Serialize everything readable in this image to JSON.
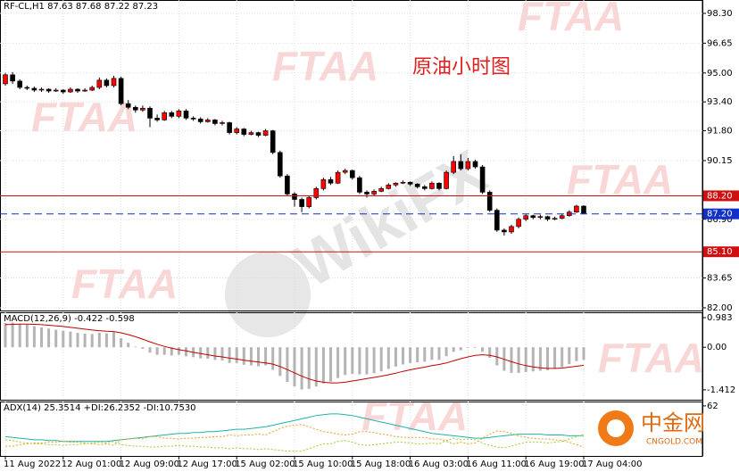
{
  "chart_data": {
    "type": "candlestick",
    "header": "RF-CL,H1  87.63 87.68 87.22 87.23",
    "title": "原油小时图",
    "categories": [
      "11 Aug 2022",
      null,
      null,
      null,
      null,
      null,
      null,
      null,
      "12 Aug 01:00",
      null,
      null,
      null,
      null,
      null,
      null,
      null,
      "12 Aug 09:00",
      null,
      null,
      null,
      null,
      null,
      null,
      null,
      "12 Aug 17:00",
      null,
      null,
      null,
      null,
      null,
      null,
      null,
      "15 Aug 02:00",
      null,
      null,
      null,
      null,
      null,
      null,
      null,
      "15 Aug 10:00",
      null,
      null,
      null,
      null,
      null,
      null,
      null,
      "15 Aug 18:00",
      null,
      null,
      null,
      null,
      null,
      null,
      null,
      "16 Aug 03:00",
      null,
      null,
      null,
      null,
      null,
      null,
      null,
      "16 Aug 11:00",
      null,
      null,
      null,
      null,
      null,
      null,
      null,
      "16 Aug 19:00",
      null,
      null,
      null,
      null,
      null,
      null,
      null,
      "17 Aug 04:00"
    ],
    "open": [
      94.4,
      94.9,
      94.55,
      94.2,
      94.15,
      94.05,
      94.1,
      94.0,
      94.05,
      93.95,
      94.1,
      94.0,
      94.05,
      94.2,
      94.6,
      94.3,
      94.7,
      93.3,
      93.1,
      92.95,
      93.05,
      92.5,
      92.4,
      92.8,
      92.6,
      92.9,
      92.5,
      92.45,
      92.3,
      92.4,
      92.2,
      92.25,
      91.7,
      91.9,
      91.6,
      91.7,
      91.55,
      91.8,
      90.6,
      89.3,
      88.3,
      88.0,
      87.6,
      88.1,
      88.6,
      89.1,
      88.9,
      89.5,
      89.6,
      89.2,
      88.4,
      88.3,
      88.45,
      88.6,
      88.8,
      88.9,
      88.95,
      88.85,
      88.7,
      88.6,
      88.9,
      88.6,
      89.5,
      90.1,
      89.7,
      90.1,
      89.8,
      88.4,
      87.4,
      86.3,
      86.2,
      86.5,
      86.9,
      87.1,
      87.0,
      87.05,
      86.9,
      86.95,
      87.1,
      87.3,
      87.63
    ],
    "high": [
      95.0,
      95.05,
      94.65,
      94.3,
      94.25,
      94.2,
      94.15,
      94.15,
      94.1,
      94.2,
      94.15,
      94.15,
      94.3,
      94.75,
      94.7,
      94.85,
      94.8,
      93.5,
      93.2,
      93.2,
      93.15,
      92.7,
      92.9,
      92.9,
      93.0,
      93.0,
      92.6,
      92.55,
      92.5,
      92.45,
      92.35,
      92.3,
      92.0,
      91.95,
      91.8,
      91.75,
      91.9,
      91.85,
      90.7,
      89.4,
      88.4,
      88.1,
      88.2,
      88.7,
      89.2,
      89.25,
      89.6,
      89.7,
      89.65,
      89.3,
      88.5,
      88.55,
      88.7,
      88.9,
      88.95,
      89.05,
      89.0,
      88.9,
      88.8,
      89.0,
      88.95,
      89.6,
      90.4,
      90.5,
      90.3,
      90.2,
      89.9,
      88.5,
      87.5,
      86.4,
      86.6,
      87.0,
      87.2,
      87.15,
      87.15,
      87.1,
      87.05,
      87.2,
      87.4,
      87.7,
      87.68
    ],
    "low": [
      94.3,
      94.4,
      94.1,
      94.05,
      93.95,
      93.95,
      93.9,
      93.95,
      93.85,
      93.9,
      93.9,
      93.95,
      94.0,
      94.1,
      94.2,
      94.2,
      93.2,
      93.0,
      92.8,
      92.85,
      92.0,
      92.3,
      92.35,
      92.5,
      92.5,
      92.4,
      92.35,
      92.2,
      92.25,
      92.1,
      92.1,
      91.6,
      91.6,
      91.5,
      91.55,
      91.45,
      91.5,
      90.5,
      89.2,
      88.2,
      87.6,
      87.3,
      87.5,
      88.0,
      88.5,
      88.8,
      88.85,
      89.4,
      89.1,
      88.3,
      88.1,
      88.2,
      88.4,
      88.55,
      88.7,
      88.85,
      88.75,
      88.6,
      88.5,
      88.55,
      88.5,
      88.55,
      89.4,
      89.6,
      89.6,
      89.7,
      88.3,
      87.3,
      86.2,
      86.0,
      86.1,
      86.4,
      86.8,
      86.9,
      86.9,
      86.8,
      86.85,
      86.9,
      87.05,
      87.25,
      87.22
    ],
    "close": [
      94.9,
      94.55,
      94.2,
      94.15,
      94.05,
      94.1,
      94.0,
      94.05,
      93.95,
      94.1,
      94.0,
      94.05,
      94.2,
      94.6,
      94.3,
      94.7,
      93.3,
      93.1,
      92.95,
      93.05,
      92.5,
      92.4,
      92.8,
      92.6,
      92.9,
      92.5,
      92.45,
      92.3,
      92.4,
      92.2,
      92.25,
      91.7,
      91.9,
      91.6,
      91.7,
      91.55,
      91.8,
      90.6,
      89.3,
      88.3,
      88.0,
      87.6,
      88.1,
      88.6,
      89.1,
      88.9,
      89.5,
      89.6,
      89.2,
      88.4,
      88.3,
      88.45,
      88.6,
      88.8,
      88.9,
      88.95,
      88.85,
      88.7,
      88.6,
      88.9,
      88.6,
      89.5,
      90.1,
      89.7,
      90.1,
      89.8,
      88.4,
      87.4,
      86.3,
      86.2,
      86.5,
      86.9,
      87.1,
      87.0,
      87.05,
      86.9,
      86.95,
      87.1,
      87.3,
      87.63,
      87.23
    ],
    "up_color": "#ff0000",
    "down_color": "#000000",
    "ylim": [
      81.85,
      99.04
    ],
    "yticks": [
      {
        "value": 98.3,
        "label": "98.30"
      },
      96.65,
      {
        "value": 95,
        "label": "95.00"
      },
      {
        "value": 93.4,
        "label": "93.40"
      },
      {
        "value": 91.8,
        "label": "91.80"
      },
      90.15,
      {
        "value": 86.9,
        "label": "86.90"
      },
      83.65,
      {
        "value": 82,
        "label": "82.00"
      }
    ],
    "grid": true,
    "hlines": [
      {
        "value": 88.2,
        "label": "88.20",
        "color": "#d01010",
        "dashed": false
      },
      {
        "value": 87.2,
        "label": "87.20",
        "color": "#1030c8",
        "dashed": true
      },
      {
        "value": 85.1,
        "label": "85.10",
        "color": "#d01010",
        "dashed": false
      }
    ],
    "macd": {
      "label": "MACD(12,26,9) -0.422 -0.598",
      "ylim": [
        -1.74,
        1.16
      ],
      "yticks": [
        0.983,
        {
          "value": 0,
          "label": "0.00"
        },
        -1.412
      ],
      "histogram": {
        "color": "#b4b4b4",
        "values": [
          0.8,
          0.82,
          0.78,
          0.75,
          0.7,
          0.66,
          0.62,
          0.58,
          0.55,
          0.52,
          0.48,
          0.45,
          0.44,
          0.48,
          0.46,
          0.5,
          0.3,
          0.15,
          0.02,
          -0.05,
          -0.18,
          -0.25,
          -0.25,
          -0.27,
          -0.25,
          -0.3,
          -0.33,
          -0.37,
          -0.38,
          -0.42,
          -0.44,
          -0.52,
          -0.52,
          -0.58,
          -0.6,
          -0.63,
          -0.6,
          -0.75,
          -0.95,
          -1.15,
          -1.3,
          -1.4,
          -1.38,
          -1.3,
          -1.2,
          -1.14,
          -1.02,
          -0.92,
          -0.88,
          -0.9,
          -0.9,
          -0.86,
          -0.8,
          -0.72,
          -0.64,
          -0.57,
          -0.52,
          -0.5,
          -0.48,
          -0.42,
          -0.42,
          -0.3,
          -0.15,
          -0.1,
          -0.02,
          -0.02,
          -0.15,
          -0.35,
          -0.6,
          -0.78,
          -0.85,
          -0.85,
          -0.82,
          -0.8,
          -0.78,
          -0.76,
          -0.72,
          -0.66,
          -0.56,
          -0.46,
          -0.422
        ]
      },
      "signal": {
        "color": "#c00000",
        "values": [
          0.75,
          0.76,
          0.77,
          0.77,
          0.76,
          0.75,
          0.73,
          0.71,
          0.69,
          0.66,
          0.63,
          0.6,
          0.57,
          0.55,
          0.53,
          0.52,
          0.48,
          0.42,
          0.35,
          0.27,
          0.18,
          0.1,
          0.03,
          -0.03,
          -0.08,
          -0.12,
          -0.17,
          -0.21,
          -0.25,
          -0.29,
          -0.32,
          -0.36,
          -0.39,
          -0.43,
          -0.46,
          -0.49,
          -0.52,
          -0.56,
          -0.64,
          -0.74,
          -0.85,
          -0.96,
          -1.05,
          -1.12,
          -1.16,
          -1.18,
          -1.18,
          -1.16,
          -1.12,
          -1.08,
          -1.04,
          -1.0,
          -0.96,
          -0.91,
          -0.86,
          -0.8,
          -0.75,
          -0.7,
          -0.66,
          -0.61,
          -0.57,
          -0.52,
          -0.45,
          -0.38,
          -0.32,
          -0.27,
          -0.25,
          -0.27,
          -0.32,
          -0.4,
          -0.48,
          -0.55,
          -0.61,
          -0.65,
          -0.68,
          -0.7,
          -0.7,
          -0.69,
          -0.66,
          -0.63,
          -0.598
        ]
      }
    },
    "adx": {
      "label": "ADX(14) 25.3514 +DI:26.2352 -DI:10.7530",
      "ylim": [
        0,
        67.4
      ],
      "yticks": [
        62
      ],
      "series": [
        {
          "color": "#20b2aa",
          "dashed": false,
          "values": [
            24,
            23,
            22,
            21,
            20,
            20,
            19,
            19,
            18,
            18,
            18,
            18,
            18,
            18,
            18,
            19,
            20,
            21,
            22,
            23,
            24,
            25,
            26,
            27,
            28,
            28,
            29,
            29,
            30,
            30,
            31,
            32,
            33,
            33,
            34,
            35,
            36,
            38,
            40,
            42,
            44,
            46,
            48,
            50,
            51,
            52,
            52,
            51,
            50,
            48,
            46,
            44,
            42,
            40,
            38,
            36,
            34,
            32,
            30,
            28,
            27,
            26,
            25,
            24,
            23,
            22,
            22,
            23,
            24,
            25,
            26,
            27,
            27,
            27,
            27,
            26,
            26,
            26,
            25,
            25,
            25.3514
          ]
        },
        {
          "color": "#9acd32",
          "dashed": true,
          "values": [
            20,
            19,
            17,
            16,
            15,
            15,
            14,
            14,
            13,
            14,
            14,
            15,
            16,
            17,
            16,
            18,
            14,
            13,
            12,
            12,
            11,
            11,
            12,
            12,
            13,
            12,
            12,
            11,
            11,
            10,
            10,
            9,
            10,
            9,
            9,
            8,
            9,
            8,
            7,
            6,
            6,
            6,
            9,
            12,
            15,
            15,
            18,
            19,
            17,
            14,
            13,
            14,
            15,
            16,
            17,
            17,
            16,
            15,
            15,
            16,
            15,
            19,
            22,
            20,
            21,
            20,
            16,
            13,
            11,
            10,
            12,
            15,
            17,
            17,
            17,
            16,
            17,
            18,
            21,
            24,
            26.2352
          ]
        },
        {
          "color": "#e6a020",
          "dashed": true,
          "values": [
            12,
            12,
            14,
            15,
            16,
            16,
            17,
            17,
            18,
            17,
            17,
            16,
            15,
            14,
            15,
            13,
            20,
            21,
            22,
            21,
            24,
            24,
            22,
            22,
            21,
            22,
            22,
            23,
            23,
            24,
            24,
            26,
            25,
            26,
            26,
            27,
            26,
            30,
            34,
            37,
            38,
            39,
            36,
            33,
            30,
            29,
            27,
            26,
            27,
            30,
            30,
            29,
            27,
            26,
            24,
            23,
            23,
            23,
            23,
            21,
            21,
            18,
            15,
            17,
            15,
            16,
            22,
            27,
            31,
            30,
            28,
            25,
            23,
            22,
            21,
            21,
            20,
            19,
            17,
            14,
            10.753
          ]
        }
      ]
    }
  },
  "watermarks": {
    "brand": "FTAA",
    "site": "WikiFX",
    "logo": "中金网",
    "logo_url": "CNGOLD.COM"
  }
}
